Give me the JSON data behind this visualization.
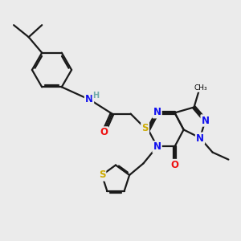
{
  "bg_color": "#ebebeb",
  "bond_color": "#1a1a1a",
  "bond_width": 1.6,
  "atom_colors": {
    "N": "#1010ee",
    "O": "#ee1010",
    "S": "#ccaa00",
    "H": "#70aaaa"
  },
  "font_size": 8.5
}
